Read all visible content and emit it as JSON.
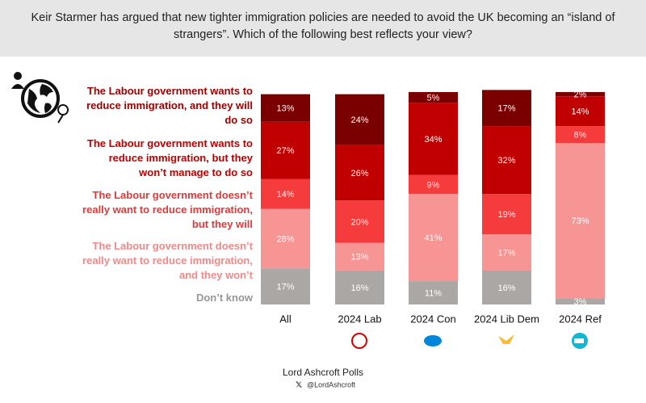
{
  "chart_data": {
    "type": "stacked_bar",
    "title": "Keir Starmer has argued that new tighter immigration policies are needed to avoid the UK becoming an “island of strangers”. Which of the following best reflects your view?",
    "categories": [
      "All",
      "2024 Lab",
      "2024 Con",
      "2024 Lib Dem",
      "2024 Ref"
    ],
    "series": [
      {
        "name": "The Labour government wants to reduce immigration, and they will do so",
        "color": "#7a0000",
        "label_color": "#a00000",
        "values": [
          13,
          24,
          5,
          17,
          2
        ],
        "value_labels": [
          "13%",
          "24%",
          "5%",
          "17%",
          "2%"
        ]
      },
      {
        "name": "The Labour government wants to reduce immigration, but they won’t manage to do so",
        "color": "#c00000",
        "label_color": "#c00000",
        "values": [
          27,
          26,
          34,
          32,
          14
        ],
        "value_labels": [
          "27%",
          "26%",
          "34%",
          "32%",
          "14%"
        ]
      },
      {
        "name": "The Labour government doesn’t really want to reduce immigration, but they will",
        "color": "#f53b3b",
        "label_color": "#e03a3a",
        "values": [
          14,
          20,
          9,
          19,
          8
        ],
        "value_labels": [
          "14%",
          "20%",
          "9%",
          "19%",
          "8%"
        ]
      },
      {
        "name": "The Labour government doesn’t really want to reduce immigration, and they won’t",
        "color": "#f79494",
        "label_color": "#f08a8a",
        "values": [
          28,
          13,
          41,
          17,
          73
        ],
        "value_labels": [
          "28%",
          "13%",
          "41%",
          "17%",
          "73%"
        ]
      },
      {
        "name": "Don’t know",
        "color": "#aba7a5",
        "label_color": "#9a9696",
        "values": [
          17,
          16,
          11,
          16,
          3
        ],
        "value_labels": [
          "17%",
          "16%",
          "11%",
          "16%",
          "3%"
        ]
      }
    ],
    "source": "Lord Ashcroft Polls",
    "handle": "@LordAshcroft"
  }
}
